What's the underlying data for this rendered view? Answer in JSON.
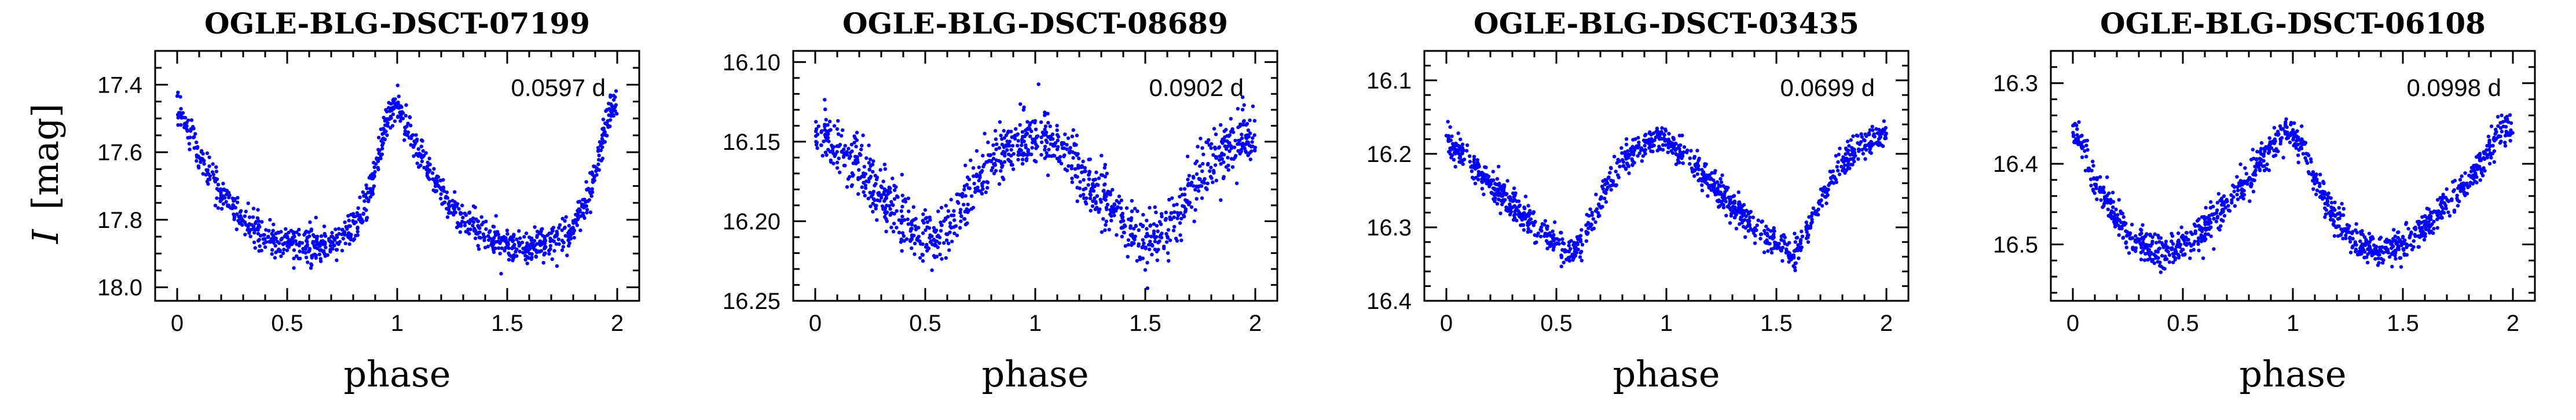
{
  "figure": {
    "ylabel_glyph": "I",
    "ylabel_unit": "[mag]"
  },
  "chart_data": [
    {
      "type": "scatter",
      "title": "OGLE-BLG-DSCT-07199",
      "period_label": "0.0597 d",
      "xlabel": "phase",
      "ylabel": "I [mag]",
      "xlim": [
        -0.1,
        2.1
      ],
      "ylim": [
        18.04,
        17.3
      ],
      "y_inverted": true,
      "xticks_major": [
        0,
        0.5,
        1,
        1.5,
        2
      ],
      "xtick_labels": [
        "0",
        "0.5",
        "1",
        "1.5",
        "2"
      ],
      "yticks_major": [
        17.4,
        17.6,
        17.8,
        18.0
      ],
      "ytick_labels": [
        "17.4",
        "17.6",
        "17.8",
        "18.0"
      ],
      "yticks_minor_step": 0.05,
      "color": "#0000ff",
      "curve": {
        "phase": [
          0.0,
          0.02,
          0.05,
          0.1,
          0.2,
          0.3,
          0.4,
          0.5,
          0.6,
          0.7,
          0.78,
          0.84,
          0.88,
          0.92,
          0.95,
          0.97,
          0.99,
          1.0
        ],
        "mag": [
          17.46,
          17.49,
          17.53,
          17.61,
          17.72,
          17.8,
          17.85,
          17.87,
          17.88,
          17.87,
          17.84,
          17.78,
          17.7,
          17.6,
          17.52,
          17.48,
          17.46,
          17.46
        ]
      },
      "scatter_mag": 0.025
    },
    {
      "type": "scatter",
      "title": "OGLE-BLG-DSCT-08689",
      "period_label": "0.0902 d",
      "xlabel": "phase",
      "ylabel": "",
      "xlim": [
        -0.1,
        2.1
      ],
      "ylim": [
        16.25,
        16.093
      ],
      "y_inverted": true,
      "xticks_major": [
        0,
        0.5,
        1,
        1.5,
        2
      ],
      "xtick_labels": [
        "0",
        "0.5",
        "1",
        "1.5",
        "2"
      ],
      "yticks_major": [
        16.1,
        16.15,
        16.2,
        16.25
      ],
      "ytick_labels": [
        "16.10",
        "16.15",
        "16.20",
        "16.25"
      ],
      "yticks_minor_step": 0.01,
      "color": "#0000ff",
      "curve": {
        "phase": [
          0.0,
          0.1,
          0.2,
          0.3,
          0.4,
          0.5,
          0.55,
          0.6,
          0.7,
          0.8,
          0.9,
          1.0
        ],
        "mag": [
          16.147,
          16.152,
          16.165,
          16.182,
          16.2,
          16.212,
          16.212,
          16.205,
          16.183,
          16.163,
          16.15,
          16.147
        ]
      },
      "scatter_mag": 0.009
    },
    {
      "type": "scatter",
      "title": "OGLE-BLG-DSCT-03435",
      "period_label": "0.0699 d",
      "xlabel": "phase",
      "ylabel": "",
      "xlim": [
        -0.1,
        2.1
      ],
      "ylim": [
        16.4,
        16.06
      ],
      "y_inverted": true,
      "xticks_major": [
        0,
        0.5,
        1,
        1.5,
        2
      ],
      "xtick_labels": [
        "0",
        "0.5",
        "1",
        "1.5",
        "2"
      ],
      "yticks_major": [
        16.1,
        16.2,
        16.3,
        16.4
      ],
      "ytick_labels": [
        "16.1",
        "16.2",
        "16.3",
        "16.4"
      ],
      "yticks_minor_step": 0.02,
      "color": "#0000ff",
      "curve": {
        "phase": [
          0.0,
          0.1,
          0.2,
          0.3,
          0.4,
          0.5,
          0.58,
          0.65,
          0.72,
          0.8,
          0.88,
          0.95,
          1.0
        ],
        "mag": [
          16.18,
          16.21,
          16.24,
          16.27,
          16.3,
          16.32,
          16.34,
          16.3,
          16.25,
          16.21,
          16.19,
          16.18,
          16.18
        ]
      },
      "scatter_mag": 0.01
    },
    {
      "type": "scatter",
      "title": "OGLE-BLG-DSCT-06108",
      "period_label": "0.0998 d",
      "xlabel": "phase",
      "ylabel": "",
      "xlim": [
        -0.1,
        2.1
      ],
      "ylim": [
        16.57,
        16.26
      ],
      "y_inverted": true,
      "xticks_major": [
        0,
        0.5,
        1,
        1.5,
        2
      ],
      "xtick_labels": [
        "0",
        "0.5",
        "1",
        "1.5",
        "2"
      ],
      "yticks_major": [
        16.3,
        16.4,
        16.5
      ],
      "ytick_labels": [
        "16.3",
        "16.4",
        "16.5"
      ],
      "yticks_minor_step": 0.02,
      "color": "#0000ff",
      "curve": {
        "phase": [
          0.0,
          0.05,
          0.1,
          0.2,
          0.3,
          0.4,
          0.5,
          0.6,
          0.7,
          0.8,
          0.9,
          0.95,
          1.0
        ],
        "mag": [
          16.36,
          16.38,
          16.42,
          16.47,
          16.5,
          16.51,
          16.5,
          16.48,
          16.45,
          16.42,
          16.38,
          16.36,
          16.355
        ]
      },
      "scatter_mag": 0.01
    }
  ]
}
